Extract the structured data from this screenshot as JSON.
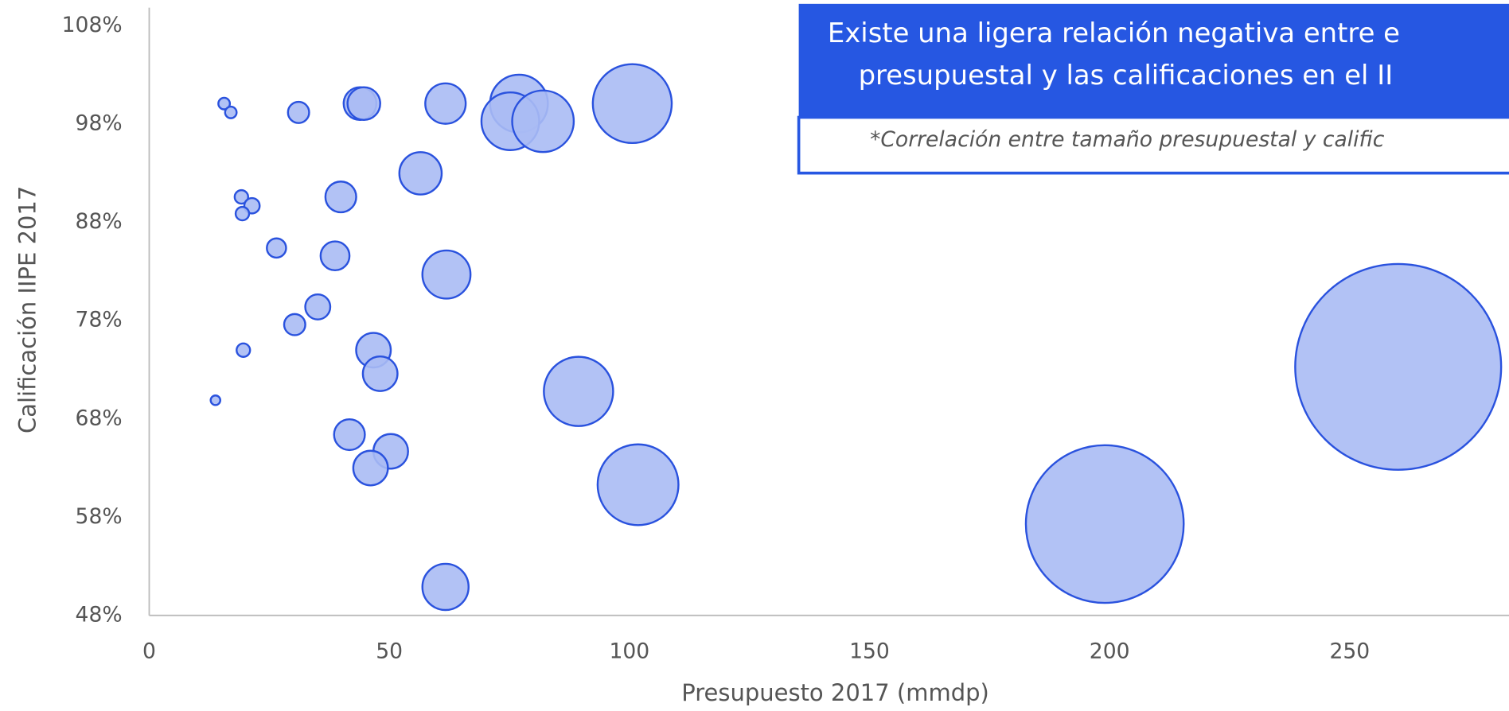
{
  "chart_data": {
    "type": "bubble",
    "title": [
      "Existe una ligera relación negativa entre e",
      "presupuestal y las calificaciones en el II"
    ],
    "subtitle": "*Correlación entre tamaño presupuestal y calific",
    "x_label": "Presupuesto 2017 (mmdp)",
    "y_label": "Calificación IIPE 2017",
    "xlim": [
      0,
      300
    ],
    "xticks": [
      0,
      50,
      100,
      150,
      200,
      250
    ],
    "ylim": [
      48,
      108
    ],
    "yticks": [
      {
        "value": 48,
        "label": "48%"
      },
      {
        "value": 58,
        "label": "58%"
      },
      {
        "value": 68,
        "label": "68%"
      },
      {
        "value": 78,
        "label": "78%"
      },
      {
        "value": 88,
        "label": "88%"
      },
      {
        "value": 98,
        "label": "98%"
      },
      {
        "value": 108,
        "label": "108%"
      }
    ],
    "color": "#aabbf4",
    "edge_color": "#2a52de",
    "x": [
      15.6,
      17.0,
      31.1,
      43.9,
      44.7,
      61.7,
      77.0,
      75.2,
      82.0,
      100.6,
      56.5,
      19.2,
      21.4,
      19.4,
      39.9,
      26.5,
      38.7,
      61.9,
      35.1,
      30.3,
      19.6,
      46.7,
      48.1,
      13.8,
      89.4,
      260.1,
      41.7,
      50.3,
      46.1,
      101.8,
      199.0,
      61.7
    ],
    "values": [
      100.1,
      99.2,
      99.2,
      100.1,
      100.1,
      100.1,
      100.1,
      98.3,
      98.3,
      100.1,
      93.0,
      90.6,
      89.7,
      88.9,
      90.6,
      85.4,
      84.6,
      82.7,
      79.4,
      77.6,
      75.0,
      75.0,
      72.6,
      69.9,
      70.8,
      73.3,
      66.4,
      64.7,
      63.0,
      61.3,
      57.3,
      50.9
    ],
    "sizes": [
      6,
      6,
      11,
      17,
      17,
      21,
      30,
      30,
      32,
      41,
      22,
      7,
      8,
      7,
      16,
      10,
      15,
      25,
      13,
      11,
      7,
      18,
      18,
      5,
      36,
      107,
      16,
      18,
      18,
      42,
      82,
      24
    ]
  }
}
